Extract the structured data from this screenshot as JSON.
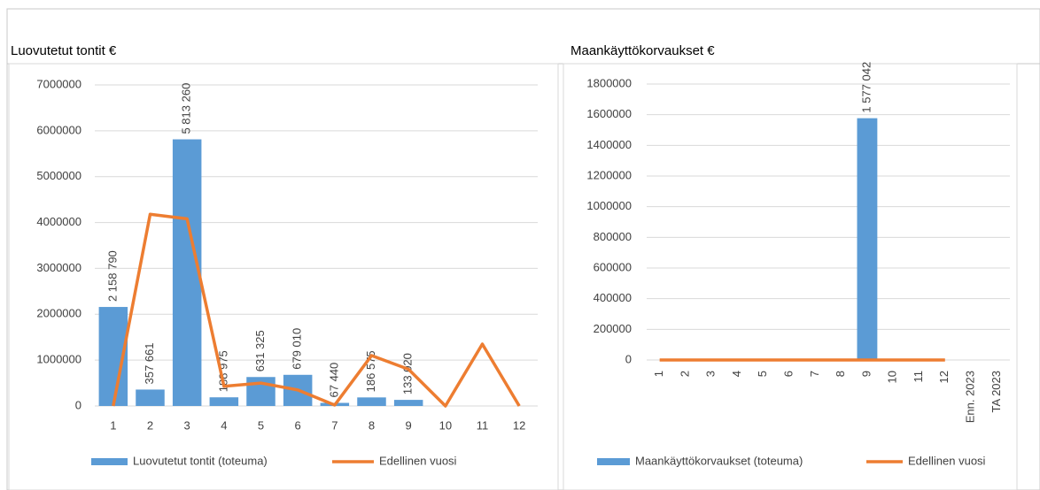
{
  "chart_data": [
    {
      "type": "bar",
      "title": "Luovutetut tontit €",
      "categories": [
        "1",
        "2",
        "3",
        "4",
        "5",
        "6",
        "7",
        "8",
        "9",
        "10",
        "11",
        "12"
      ],
      "series": [
        {
          "name": "Luovutetut tontit (toteuma)",
          "type": "bar",
          "color": "#5b9bd5",
          "values": [
            2158790,
            357661,
            5813260,
            188975,
            631325,
            679010,
            67440,
            186575,
            133020,
            null,
            null,
            null
          ],
          "value_labels": [
            "2 158 790",
            "357 661",
            "5 813 260",
            "188 975",
            "631 325",
            "679 010",
            "67 440",
            "186 575",
            "133 020",
            null,
            null,
            null
          ]
        },
        {
          "name": "Edellinen vuosi",
          "type": "line",
          "color": "#ed7d31",
          "values": [
            0,
            4180000,
            4080000,
            430000,
            500000,
            350000,
            20000,
            1100000,
            800000,
            0,
            1350000,
            0
          ]
        }
      ],
      "ylim": [
        0,
        7000000
      ],
      "yticks": [
        0,
        1000000,
        2000000,
        3000000,
        4000000,
        5000000,
        6000000,
        7000000
      ],
      "grid": true,
      "legend": "bottom"
    },
    {
      "type": "bar",
      "title": "Maankäyttökorvaukset €",
      "categories": [
        "1",
        "2",
        "3",
        "4",
        "5",
        "6",
        "7",
        "8",
        "9",
        "10",
        "11",
        "12",
        "Enn. 2023",
        "TA 2023"
      ],
      "series": [
        {
          "name": "Maankäyttökorvaukset (toteuma)",
          "type": "bar",
          "color": "#5b9bd5",
          "values": [
            null,
            null,
            null,
            null,
            null,
            null,
            null,
            null,
            1577042,
            null,
            null,
            null,
            null,
            null
          ],
          "value_labels": [
            null,
            null,
            null,
            null,
            null,
            null,
            null,
            null,
            "1 577 042",
            null,
            null,
            null,
            null,
            null
          ]
        },
        {
          "name": "Edellinen vuosi",
          "type": "line",
          "color": "#ed7d31",
          "values": [
            0,
            0,
            0,
            0,
            0,
            0,
            0,
            0,
            0,
            0,
            0,
            0,
            null,
            null
          ]
        }
      ],
      "ylim": [
        0,
        1800000
      ],
      "yticks": [
        0,
        200000,
        400000,
        600000,
        800000,
        1000000,
        1200000,
        1400000,
        1600000,
        1800000
      ],
      "grid": true,
      "legend": "bottom",
      "rotate_x_labels": true
    }
  ]
}
